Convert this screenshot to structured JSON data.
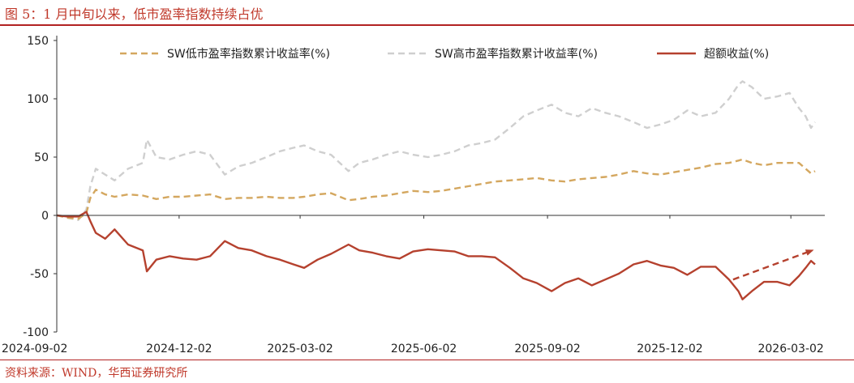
{
  "figure": {
    "title": "图 5：1 月中旬以来，低市盈率指数持续占优",
    "source": "资料来源：WIND，华西证券研究所"
  },
  "colors": {
    "low_pe": "#d4a75f",
    "high_pe": "#cfcfcf",
    "excess": "#b5412e",
    "title": "#c0392b",
    "axis": "#333333"
  },
  "chart_data": {
    "type": "line",
    "xlabel": "",
    "ylabel": "",
    "ylim": [
      -100,
      150
    ],
    "yticks": [
      -100,
      -50,
      0,
      50,
      100,
      150
    ],
    "xlim": [
      "2024-09-02",
      "2026-03-20"
    ],
    "xticks": [
      "2024-09-02",
      "2024-12-02",
      "2025-03-02",
      "2025-06-02",
      "2025-09-02",
      "2025-12-02",
      "2026-03-02"
    ],
    "legend_position": "top",
    "series": [
      {
        "name": "SW低市盈率指数累计收益率(%)",
        "style": "dashed",
        "points": [
          [
            "2024-09-02",
            0
          ],
          [
            "2024-09-10",
            -2
          ],
          [
            "2024-09-18",
            -3
          ],
          [
            "2024-09-24",
            2
          ],
          [
            "2024-09-27",
            15
          ],
          [
            "2024-10-01",
            22
          ],
          [
            "2024-10-08",
            18
          ],
          [
            "2024-10-15",
            16
          ],
          [
            "2024-10-25",
            18
          ],
          [
            "2024-11-05",
            17
          ],
          [
            "2024-11-15",
            14
          ],
          [
            "2024-11-25",
            16
          ],
          [
            "2024-12-05",
            16
          ],
          [
            "2024-12-15",
            17
          ],
          [
            "2024-12-25",
            18
          ],
          [
            "2025-01-05",
            14
          ],
          [
            "2025-01-15",
            15
          ],
          [
            "2025-01-25",
            15
          ],
          [
            "2025-02-05",
            16
          ],
          [
            "2025-02-15",
            15
          ],
          [
            "2025-02-25",
            15
          ],
          [
            "2025-03-05",
            16
          ],
          [
            "2025-03-15",
            18
          ],
          [
            "2025-03-25",
            19
          ],
          [
            "2025-04-07",
            13
          ],
          [
            "2025-04-15",
            14
          ],
          [
            "2025-04-25",
            16
          ],
          [
            "2025-05-05",
            17
          ],
          [
            "2025-05-15",
            19
          ],
          [
            "2025-05-25",
            21
          ],
          [
            "2025-06-05",
            20
          ],
          [
            "2025-06-15",
            21
          ],
          [
            "2025-06-25",
            23
          ],
          [
            "2025-07-05",
            25
          ],
          [
            "2025-07-15",
            27
          ],
          [
            "2025-07-25",
            29
          ],
          [
            "2025-08-05",
            30
          ],
          [
            "2025-08-15",
            31
          ],
          [
            "2025-08-25",
            32
          ],
          [
            "2025-09-05",
            30
          ],
          [
            "2025-09-15",
            29
          ],
          [
            "2025-09-25",
            31
          ],
          [
            "2025-10-05",
            32
          ],
          [
            "2025-10-15",
            33
          ],
          [
            "2025-10-25",
            35
          ],
          [
            "2025-11-05",
            38
          ],
          [
            "2025-11-15",
            36
          ],
          [
            "2025-11-25",
            35
          ],
          [
            "2025-12-05",
            37
          ],
          [
            "2025-12-15",
            39
          ],
          [
            "2025-12-25",
            41
          ],
          [
            "2026-01-05",
            44
          ],
          [
            "2026-01-15",
            45
          ],
          [
            "2026-01-22",
            47
          ],
          [
            "2026-01-25",
            48
          ],
          [
            "2026-02-01",
            45
          ],
          [
            "2026-02-10",
            43
          ],
          [
            "2026-02-20",
            45
          ],
          [
            "2026-03-01",
            45
          ],
          [
            "2026-03-08",
            45
          ],
          [
            "2026-03-13",
            40
          ],
          [
            "2026-03-17",
            36
          ],
          [
            "2026-03-20",
            38
          ]
        ]
      },
      {
        "name": "SW高市盈率指数累计收益率(%)",
        "style": "dashed",
        "points": [
          [
            "2024-09-02",
            0
          ],
          [
            "2024-09-10",
            -2
          ],
          [
            "2024-09-18",
            -4
          ],
          [
            "2024-09-24",
            5
          ],
          [
            "2024-09-27",
            25
          ],
          [
            "2024-10-01",
            40
          ],
          [
            "2024-10-08",
            35
          ],
          [
            "2024-10-15",
            30
          ],
          [
            "2024-10-25",
            40
          ],
          [
            "2024-11-05",
            45
          ],
          [
            "2024-11-08",
            65
          ],
          [
            "2024-11-15",
            50
          ],
          [
            "2024-11-25",
            48
          ],
          [
            "2024-12-05",
            52
          ],
          [
            "2024-12-15",
            55
          ],
          [
            "2024-12-25",
            52
          ],
          [
            "2025-01-05",
            35
          ],
          [
            "2025-01-15",
            42
          ],
          [
            "2025-01-25",
            45
          ],
          [
            "2025-02-05",
            50
          ],
          [
            "2025-02-15",
            55
          ],
          [
            "2025-02-25",
            58
          ],
          [
            "2025-03-05",
            60
          ],
          [
            "2025-03-15",
            55
          ],
          [
            "2025-03-25",
            52
          ],
          [
            "2025-04-07",
            38
          ],
          [
            "2025-04-15",
            45
          ],
          [
            "2025-04-25",
            48
          ],
          [
            "2025-05-05",
            52
          ],
          [
            "2025-05-15",
            55
          ],
          [
            "2025-05-25",
            52
          ],
          [
            "2025-06-05",
            50
          ],
          [
            "2025-06-15",
            52
          ],
          [
            "2025-06-25",
            55
          ],
          [
            "2025-07-05",
            60
          ],
          [
            "2025-07-15",
            62
          ],
          [
            "2025-07-25",
            65
          ],
          [
            "2025-08-05",
            75
          ],
          [
            "2025-08-15",
            85
          ],
          [
            "2025-08-25",
            90
          ],
          [
            "2025-09-05",
            95
          ],
          [
            "2025-09-15",
            88
          ],
          [
            "2025-09-25",
            85
          ],
          [
            "2025-10-05",
            92
          ],
          [
            "2025-10-15",
            88
          ],
          [
            "2025-10-25",
            85
          ],
          [
            "2025-11-05",
            80
          ],
          [
            "2025-11-15",
            75
          ],
          [
            "2025-11-25",
            78
          ],
          [
            "2025-12-05",
            82
          ],
          [
            "2025-12-15",
            90
          ],
          [
            "2025-12-25",
            85
          ],
          [
            "2026-01-05",
            88
          ],
          [
            "2026-01-15",
            100
          ],
          [
            "2026-01-22",
            112
          ],
          [
            "2026-01-25",
            115
          ],
          [
            "2026-02-01",
            110
          ],
          [
            "2026-02-10",
            100
          ],
          [
            "2026-02-20",
            102
          ],
          [
            "2026-03-01",
            105
          ],
          [
            "2026-03-08",
            92
          ],
          [
            "2026-03-13",
            85
          ],
          [
            "2026-03-17",
            75
          ],
          [
            "2026-03-20",
            80
          ]
        ]
      },
      {
        "name": "超额收益(%)",
        "style": "solid",
        "points": [
          [
            "2024-09-02",
            0
          ],
          [
            "2024-09-10",
            -1
          ],
          [
            "2024-09-18",
            -1
          ],
          [
            "2024-09-24",
            3
          ],
          [
            "2024-09-27",
            -5
          ],
          [
            "2024-10-01",
            -15
          ],
          [
            "2024-10-08",
            -20
          ],
          [
            "2024-10-15",
            -12
          ],
          [
            "2024-10-25",
            -25
          ],
          [
            "2024-11-05",
            -30
          ],
          [
            "2024-11-08",
            -48
          ],
          [
            "2024-11-15",
            -38
          ],
          [
            "2024-11-25",
            -35
          ],
          [
            "2024-12-05",
            -37
          ],
          [
            "2024-12-15",
            -38
          ],
          [
            "2024-12-25",
            -35
          ],
          [
            "2025-01-05",
            -22
          ],
          [
            "2025-01-15",
            -28
          ],
          [
            "2025-01-25",
            -30
          ],
          [
            "2025-02-05",
            -35
          ],
          [
            "2025-02-15",
            -38
          ],
          [
            "2025-02-25",
            -42
          ],
          [
            "2025-03-05",
            -45
          ],
          [
            "2025-03-15",
            -38
          ],
          [
            "2025-03-25",
            -33
          ],
          [
            "2025-04-07",
            -25
          ],
          [
            "2025-04-15",
            -30
          ],
          [
            "2025-04-25",
            -32
          ],
          [
            "2025-05-05",
            -35
          ],
          [
            "2025-05-15",
            -37
          ],
          [
            "2025-05-25",
            -31
          ],
          [
            "2025-06-05",
            -29
          ],
          [
            "2025-06-15",
            -30
          ],
          [
            "2025-06-25",
            -31
          ],
          [
            "2025-07-05",
            -35
          ],
          [
            "2025-07-15",
            -35
          ],
          [
            "2025-07-25",
            -36
          ],
          [
            "2025-08-05",
            -45
          ],
          [
            "2025-08-15",
            -54
          ],
          [
            "2025-08-25",
            -58
          ],
          [
            "2025-09-05",
            -65
          ],
          [
            "2025-09-15",
            -58
          ],
          [
            "2025-09-25",
            -54
          ],
          [
            "2025-10-05",
            -60
          ],
          [
            "2025-10-15",
            -55
          ],
          [
            "2025-10-25",
            -50
          ],
          [
            "2025-11-05",
            -42
          ],
          [
            "2025-11-15",
            -39
          ],
          [
            "2025-11-25",
            -43
          ],
          [
            "2025-12-05",
            -45
          ],
          [
            "2025-12-15",
            -51
          ],
          [
            "2025-12-25",
            -44
          ],
          [
            "2026-01-05",
            -44
          ],
          [
            "2026-01-15",
            -55
          ],
          [
            "2026-01-22",
            -65
          ],
          [
            "2026-01-25",
            -72
          ],
          [
            "2026-02-01",
            -65
          ],
          [
            "2026-02-10",
            -57
          ],
          [
            "2026-02-20",
            -57
          ],
          [
            "2026-03-01",
            -60
          ],
          [
            "2026-03-08",
            -52
          ],
          [
            "2026-03-13",
            -45
          ],
          [
            "2026-03-17",
            -39
          ],
          [
            "2026-03-20",
            -42
          ]
        ]
      }
    ],
    "annotations": [
      {
        "type": "dashed-arrow",
        "from": [
          "2026-01-18",
          -55
        ],
        "to": [
          "2026-03-18",
          -30
        ]
      }
    ]
  }
}
